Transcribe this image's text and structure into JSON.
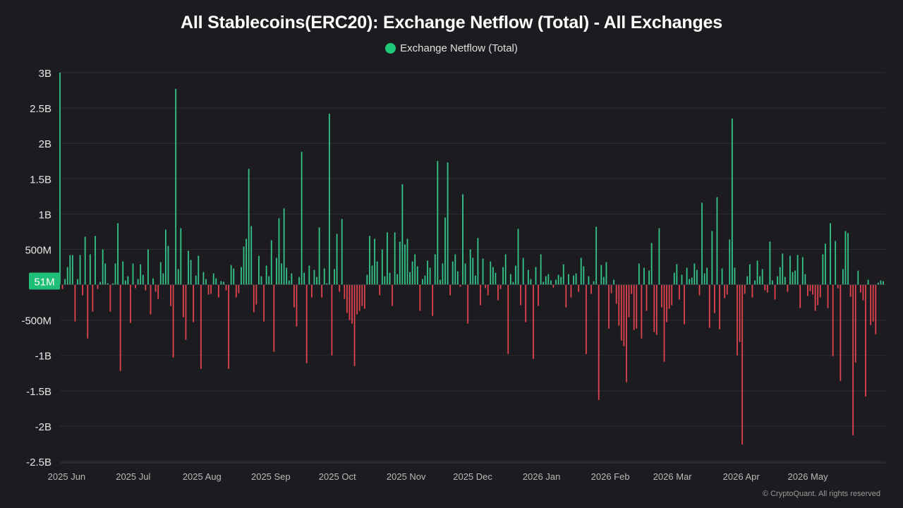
{
  "chart_data": {
    "type": "bar",
    "title": "All Stablecoins(ERC20): Exchange Netflow (Total) - All Exchanges",
    "legend": {
      "position": "top-center",
      "entries": [
        {
          "name": "Exchange Netflow (Total)",
          "color": "#1ec97a"
        }
      ]
    },
    "series_name": "Exchange Netflow (Total)",
    "positive_color": "#35c489",
    "negative_color": "#e0424e",
    "ylim": [
      -2500000000,
      3000000000
    ],
    "y_ticks": [
      {
        "value": 3000000000,
        "label": "3B"
      },
      {
        "value": 2500000000,
        "label": "2.5B"
      },
      {
        "value": 2000000000,
        "label": "2B"
      },
      {
        "value": 1500000000,
        "label": "1.5B"
      },
      {
        "value": 1000000000,
        "label": "1B"
      },
      {
        "value": 500000000,
        "label": "500M"
      },
      {
        "value": 0,
        "label": ""
      },
      {
        "value": -500000000,
        "label": "-500M"
      },
      {
        "value": -1000000000,
        "label": "-1B"
      },
      {
        "value": -1500000000,
        "label": "-1.5B"
      },
      {
        "value": -2000000000,
        "label": "-2B"
      },
      {
        "value": -2500000000,
        "label": "-2.5B"
      }
    ],
    "x_ticks": [
      {
        "date": "2025-06-01",
        "label": "2025 Jun"
      },
      {
        "date": "2025-07-01",
        "label": "2025 Jul"
      },
      {
        "date": "2025-08-01",
        "label": "2025 Aug"
      },
      {
        "date": "2025-09-01",
        "label": "2025 Sep"
      },
      {
        "date": "2025-10-01",
        "label": "2025 Oct"
      },
      {
        "date": "2025-11-01",
        "label": "2025 Nov"
      },
      {
        "date": "2025-12-01",
        "label": "2025 Dec"
      },
      {
        "date": "2026-01-01",
        "label": "2026 Jan"
      },
      {
        "date": "2026-02-01",
        "label": "2026 Feb"
      },
      {
        "date": "2026-03-01",
        "label": "2026 Mar"
      },
      {
        "date": "2026-04-01",
        "label": "2026 Apr"
      },
      {
        "date": "2026-05-01",
        "label": "2026 May"
      }
    ],
    "start_date": "2025-05-29",
    "end_date": "2026-06-04",
    "last_value_label": "51M",
    "last_value": 51000000,
    "grid": "horizontal",
    "values": [
      3000000000,
      -60000000,
      80000000,
      250000000,
      420000000,
      420000000,
      -520000000,
      80000000,
      420000000,
      -150000000,
      680000000,
      -760000000,
      430000000,
      -380000000,
      690000000,
      -60000000,
      40000000,
      500000000,
      300000000,
      20000000,
      -380000000,
      20000000,
      300000000,
      870000000,
      -1220000000,
      330000000,
      60000000,
      120000000,
      -540000000,
      300000000,
      -50000000,
      80000000,
      290000000,
      140000000,
      -80000000,
      500000000,
      -420000000,
      90000000,
      -100000000,
      -200000000,
      320000000,
      160000000,
      780000000,
      550000000,
      -300000000,
      -1030000000,
      2770000000,
      220000000,
      800000000,
      -460000000,
      -780000000,
      480000000,
      350000000,
      -530000000,
      130000000,
      410000000,
      -1190000000,
      180000000,
      80000000,
      -140000000,
      -130000000,
      160000000,
      90000000,
      -180000000,
      50000000,
      40000000,
      -80000000,
      -1190000000,
      280000000,
      230000000,
      -180000000,
      -120000000,
      250000000,
      540000000,
      650000000,
      1640000000,
      830000000,
      -390000000,
      -280000000,
      410000000,
      120000000,
      -520000000,
      270000000,
      120000000,
      630000000,
      -950000000,
      380000000,
      940000000,
      300000000,
      1080000000,
      240000000,
      60000000,
      160000000,
      -320000000,
      -590000000,
      110000000,
      1880000000,
      170000000,
      -1110000000,
      270000000,
      -180000000,
      210000000,
      110000000,
      810000000,
      -180000000,
      230000000,
      20000000,
      2420000000,
      -1000000000,
      220000000,
      720000000,
      -100000000,
      930000000,
      -200000000,
      -400000000,
      -500000000,
      -550000000,
      -1150000000,
      -420000000,
      -370000000,
      -300000000,
      -340000000,
      140000000,
      690000000,
      270000000,
      650000000,
      330000000,
      -150000000,
      500000000,
      120000000,
      740000000,
      170000000,
      -300000000,
      740000000,
      150000000,
      610000000,
      1420000000,
      570000000,
      650000000,
      180000000,
      330000000,
      430000000,
      260000000,
      -370000000,
      80000000,
      130000000,
      340000000,
      240000000,
      -440000000,
      430000000,
      1750000000,
      70000000,
      300000000,
      950000000,
      1730000000,
      -150000000,
      330000000,
      430000000,
      190000000,
      -30000000,
      1280000000,
      300000000,
      -550000000,
      500000000,
      380000000,
      130000000,
      660000000,
      -290000000,
      370000000,
      -50000000,
      -150000000,
      330000000,
      250000000,
      170000000,
      -220000000,
      -60000000,
      250000000,
      430000000,
      -980000000,
      150000000,
      40000000,
      270000000,
      790000000,
      -290000000,
      380000000,
      -530000000,
      210000000,
      80000000,
      -1050000000,
      250000000,
      -300000000,
      430000000,
      40000000,
      120000000,
      150000000,
      60000000,
      -40000000,
      70000000,
      140000000,
      110000000,
      290000000,
      -320000000,
      150000000,
      -180000000,
      130000000,
      160000000,
      -100000000,
      380000000,
      260000000,
      -980000000,
      120000000,
      -130000000,
      50000000,
      820000000,
      -1630000000,
      280000000,
      110000000,
      320000000,
      -620000000,
      -120000000,
      70000000,
      -270000000,
      -580000000,
      -790000000,
      -870000000,
      -1380000000,
      -460000000,
      -130000000,
      -640000000,
      -620000000,
      300000000,
      -760000000,
      240000000,
      -370000000,
      200000000,
      590000000,
      -670000000,
      -710000000,
      800000000,
      -320000000,
      -1090000000,
      -530000000,
      -340000000,
      -290000000,
      170000000,
      290000000,
      -210000000,
      140000000,
      -560000000,
      240000000,
      80000000,
      100000000,
      300000000,
      210000000,
      -150000000,
      1160000000,
      160000000,
      240000000,
      -610000000,
      760000000,
      -400000000,
      1240000000,
      -630000000,
      230000000,
      -190000000,
      -140000000,
      640000000,
      2350000000,
      240000000,
      -1000000000,
      -810000000,
      -2260000000,
      -130000000,
      120000000,
      290000000,
      -180000000,
      60000000,
      340000000,
      120000000,
      220000000,
      -80000000,
      -110000000,
      610000000,
      60000000,
      -210000000,
      120000000,
      250000000,
      440000000,
      110000000,
      -100000000,
      410000000,
      180000000,
      200000000,
      420000000,
      -330000000,
      390000000,
      150000000,
      -160000000,
      -90000000,
      -140000000,
      -370000000,
      -290000000,
      -180000000,
      430000000,
      580000000,
      -330000000,
      870000000,
      -1010000000,
      620000000,
      -50000000,
      -1360000000,
      220000000,
      760000000,
      730000000,
      -170000000,
      -2130000000,
      -1100000000,
      200000000,
      -110000000,
      -220000000,
      -1580000000,
      70000000,
      -570000000,
      -520000000,
      -700000000,
      30000000,
      60000000,
      51000000
    ]
  },
  "copyright": "© CryptoQuant. All rights reserved"
}
